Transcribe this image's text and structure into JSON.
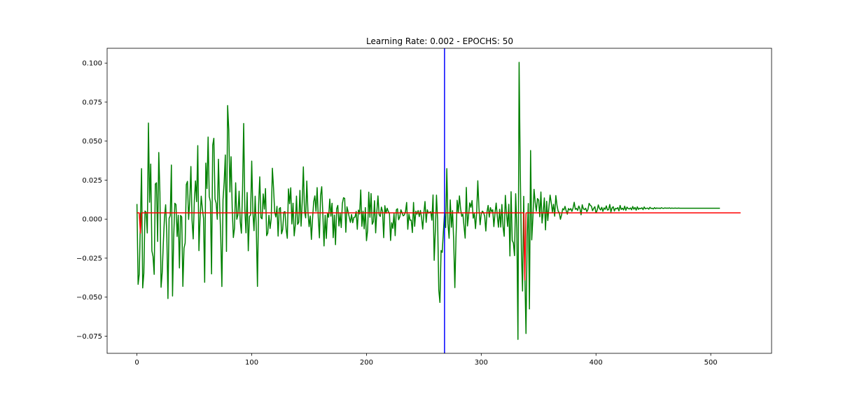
{
  "chart_data": {
    "type": "line",
    "title": "Learning Rate: 0.002 - EPOCHS: 50",
    "xlabel": "",
    "ylabel": "",
    "xlim": [
      -26,
      553
    ],
    "ylim": [
      -0.086,
      0.1095
    ],
    "xticks": [
      0,
      100,
      200,
      300,
      400,
      500
    ],
    "xtick_labels": [
      "0",
      "100",
      "200",
      "300",
      "400",
      "500"
    ],
    "yticks": [
      0.1,
      0.075,
      0.05,
      0.025,
      0.0,
      -0.025,
      -0.05,
      -0.075
    ],
    "ytick_labels": [
      "0.100",
      "0.075",
      "0.050",
      "0.025",
      "0.000",
      "−0.025",
      "−0.050",
      "−0.075"
    ],
    "grid": false,
    "legend": "none",
    "colors": {
      "actual": "#008000",
      "predicted": "#ff0000",
      "split": "#0000ff"
    },
    "series": [
      {
        "color": "#008000",
        "x_start": 0,
        "x_step": 1,
        "values": [
          0.0097,
          -0.0418,
          -0.0353,
          -0.0016,
          0.0324,
          -0.0441,
          -0.0347,
          0.0052,
          0.0044,
          -0.0089,
          0.0616,
          0.0108,
          0.0353,
          -0.0203,
          -0.0239,
          -0.0354,
          0.0225,
          0.0233,
          -0.0143,
          0.0427,
          0.0168,
          -0.0437,
          -0.0343,
          -0.0149,
          0.0015,
          0.0092,
          -0.0102,
          -0.0509,
          0.0004,
          0.0023,
          0.0347,
          -0.0493,
          -0.012,
          0.0102,
          0.0093,
          -0.0111,
          0.0025,
          -0.0313,
          0.0024,
          0.0014,
          -0.0431,
          -0.0186,
          -0.0153,
          0.0221,
          0.0242,
          -0.0002,
          0.0115,
          0.0337,
          -0.0008,
          -0.0127,
          0.0119,
          0.0245,
          0.0112,
          0.0471,
          -0.0202,
          0.0007,
          0.0147,
          0.0067,
          0.0006,
          -0.0405,
          0.0359,
          0.0196,
          0.0526,
          0.0145,
          0.0112,
          -0.0351,
          0.0474,
          0.0518,
          0.0129,
          0.0102,
          -0.0001,
          0.0384,
          0.0106,
          -0.011,
          -0.0432,
          0.0125,
          0.0237,
          0.0411,
          -0.0207,
          0.0728,
          0.0572,
          0.0174,
          0.04,
          0.0071,
          -0.0118,
          -0.0058,
          0.0233,
          -0.0001,
          0.0027,
          0.0179,
          -0.0016,
          -0.009,
          0.019,
          0.0613,
          0.0063,
          -0.0088,
          0.0171,
          -0.0203,
          0.0017,
          0.0027,
          0.0372,
          0.0045,
          -0.0074,
          0.0147,
          -0.0063,
          -0.0431,
          0.009,
          0.0271,
          0.001,
          0.0002,
          0.0162,
          0.0064,
          0.0196,
          -0.0106,
          -0.0089,
          0.0025,
          -0.006,
          0.0002,
          0.0326,
          0.0201,
          0.0046,
          0.0014,
          0.0082,
          -0.0109,
          0.0067,
          0.0074,
          -0.0094,
          -0.0066,
          0.0045,
          0.0048,
          -0.0066,
          -0.0123,
          0.0194,
          0.0099,
          0.0201,
          -0.0031,
          0.0102,
          -0.0107,
          -0.0038,
          0.0148,
          -0.0034,
          -0.002,
          0.0184,
          -0.0045,
          0.0109,
          0.0335,
          0.0051,
          0.0008,
          0.0244,
          0.0046,
          -0.0048,
          0.002,
          -0.013,
          0.0003,
          0.0111,
          0.0149,
          0.005,
          0.0202,
          0.001,
          -0.012,
          0.0151,
          0.0208,
          0.0026,
          -0.0172,
          0.0025,
          -0.0124,
          0.0037,
          0.0012,
          0.0129,
          0.0019,
          0.0102,
          -0.0119,
          0.0026,
          -0.0164,
          0.0066,
          0.0088,
          -0.0044,
          0.0036,
          -0.0054,
          0.0101,
          0.0137,
          0.0133,
          -0.0084,
          0.0079,
          0.0047,
          0.0011,
          -0.0021,
          0.003,
          -0.0023,
          0.0011,
          0.0013,
          0.0049,
          -0.0065,
          0.0058,
          0.0033,
          0.0187,
          -0.0046,
          0.0051,
          -0.0062,
          0.0074,
          -0.0138,
          -0.0072,
          0.0173,
          0.0012,
          0.0164,
          -0.0033,
          -0.0016,
          0.0118,
          -0.0088,
          0.0046,
          0.0149,
          0.0029,
          0.0017,
          0.0077,
          0.005,
          -0.0119,
          0.0086,
          0.0038,
          0.007,
          0.0049,
          0.0039,
          -0.0137,
          -0.0023,
          -0.0059,
          0.0037,
          -0.0106,
          0.0059,
          0.0067,
          -0.0004,
          0.0014,
          0.006,
          0.0041,
          0.0021,
          0.0027,
          0.0049,
          0.0107,
          -0.0065,
          0.0032,
          -0.0007,
          -0.0006,
          -0.0086,
          0.0107,
          -0.0046,
          0.0051,
          0.0032,
          0.0055,
          0.0016,
          0.0056,
          0.0011,
          -0.0064,
          0.004,
          0.0113,
          -0.0021,
          0.006,
          0.0038,
          0.0044,
          0.0047,
          -0.0007,
          0.0155,
          -0.0264,
          -0.0076,
          0.0154,
          -0.0006,
          -0.0454,
          -0.0534,
          -0.0201,
          -0.0213,
          -0.0084,
          0.0039,
          -0.0054,
          0.0324,
          -0.0028,
          -0.0123,
          0.0123,
          -0.0052,
          0.0055,
          -0.0141,
          -0.0439,
          -0.012,
          0.0121,
          0.0041,
          0.0149,
          0.0067,
          0.0018,
          0.0032,
          -0.0047,
          -0.0122,
          0.0203,
          -0.0044,
          0.0027,
          0.0104,
          0.0076,
          0.0119,
          0.0006,
          0.0036,
          -0.0061,
          0.0041,
          0.0246,
          0.0072,
          -0.0036,
          0.0033,
          0.0051,
          0.0043,
          0.0019,
          -0.0076,
          0.0045,
          0.0088,
          0.0013,
          0.0074,
          0.0049,
          0.006,
          -0.0048,
          0.0039,
          0.0103,
          0.002,
          -0.0052,
          0.0063,
          -0.0051,
          0.0094,
          -0.0049,
          -0.011,
          0.0152,
          0.0036,
          -0.0047,
          0.0095,
          -0.0236,
          0.0176,
          -0.0136,
          -0.0153,
          -0.0234,
          0.0163,
          -0.0057,
          -0.0771,
          0.1005,
          0.0319,
          -0.0203,
          -0.0461,
          0.0146,
          -0.0356,
          -0.0733,
          -0.0115,
          0.01,
          -0.0576,
          0.044,
          -0.0133,
          0.0008,
          0.0191,
          0.0109,
          0.005,
          0.0132,
          0.0122,
          0.0015,
          0.0174,
          -0.0025,
          0.0049,
          0.0136,
          -0.0069,
          0.0114,
          -0.0009,
          0.0081,
          0.0154,
          0.0106,
          0.0046,
          0.0095,
          0.0019,
          0.0151,
          0.0089,
          0.0051,
          0.0042,
          -0.0001,
          0.0027,
          0.0067,
          0.0059,
          0.0082,
          0.0054,
          0.0032,
          0.0068,
          0.0059,
          0.0068,
          0.005,
          0.0071,
          0.0108,
          0.0063,
          0.0069,
          0.0056,
          0.0084,
          0.0067,
          0.0028,
          0.0092,
          0.0066,
          0.0061,
          0.007,
          0.0048,
          0.0062,
          0.0101,
          0.0089,
          0.0083,
          0.0054,
          0.0069,
          0.008,
          0.004,
          0.0057,
          0.0091,
          0.0068,
          0.0059,
          0.0076,
          0.005,
          0.0072,
          0.0063,
          0.0085,
          0.0058,
          0.0061,
          0.0094,
          0.0047,
          0.0071,
          0.008,
          0.0052,
          0.0069,
          0.0066,
          0.0074,
          0.0053,
          0.0088,
          0.0062,
          0.007,
          0.0059,
          0.0083,
          0.0056,
          0.0077,
          0.0068,
          0.0065,
          0.0072,
          0.006,
          0.0081,
          0.0064,
          0.0075,
          0.0057,
          0.0079,
          0.0063,
          0.007,
          0.0067,
          0.0073,
          0.0061,
          0.0078,
          0.0066,
          0.0069,
          0.0071,
          0.0064,
          0.0076,
          0.0068,
          0.007,
          0.0065,
          0.0074,
          0.0067,
          0.0072,
          0.0069,
          0.0071,
          0.0068,
          0.0073,
          0.007,
          0.0069,
          0.0072,
          0.007,
          0.0071,
          0.007,
          0.0072,
          0.0069,
          0.0071,
          0.007,
          0.007,
          0.0071,
          0.007,
          0.007,
          0.0071,
          0.007,
          0.007,
          0.007,
          0.007,
          0.007,
          0.007,
          0.007,
          0.007,
          0.007,
          0.007,
          0.007,
          0.007,
          0.007,
          0.007,
          0.007,
          0.007,
          0.007,
          0.007,
          0.007,
          0.007,
          0.007,
          0.007,
          0.007,
          0.007,
          0.007,
          0.007,
          0.007,
          0.007,
          0.007,
          0.007,
          0.007,
          0.007,
          0.007,
          0.007,
          0.007,
          0.007
        ]
      },
      {
        "color": "#ff0000",
        "x": [
          0,
          2,
          3,
          4,
          6,
          336,
          337,
          338,
          339,
          340,
          526
        ],
        "y": [
          0.004,
          0.004,
          -0.009,
          0.004,
          0.004,
          0.004,
          0.004,
          -0.039,
          0.004,
          0.004,
          0.004
        ]
      }
    ],
    "vlines": [
      {
        "x": 268,
        "color": "#0000ff"
      }
    ]
  }
}
